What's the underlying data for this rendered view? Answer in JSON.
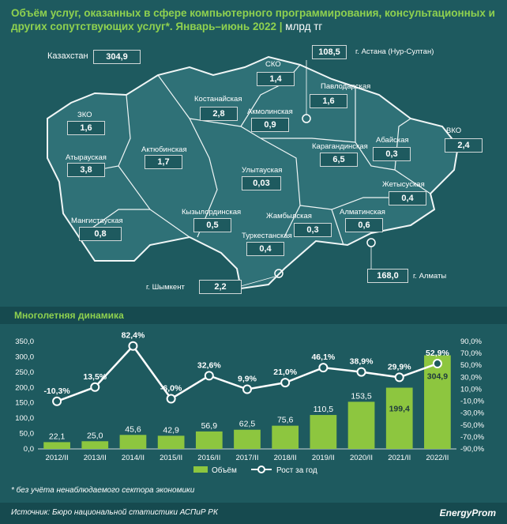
{
  "header": {
    "title": "Объём услуг, оказанных в сфере компьютерного программирования, консультационных и других сопутствующих услуг*. Январь–июнь 2022",
    "unit": "млрд тг"
  },
  "map": {
    "total_label": "Казахстан",
    "total_value": "304,9",
    "regions": [
      {
        "key": "ast",
        "name": "г. Астана (Нур-Султан)",
        "value": "108,5"
      },
      {
        "key": "sko",
        "name": "СКО",
        "value": "1,4"
      },
      {
        "key": "pav",
        "name": "Павлодарская",
        "value": "1,6"
      },
      {
        "key": "kos",
        "name": "Костанайская",
        "value": "2,8"
      },
      {
        "key": "akm",
        "name": "Акмолинская",
        "value": "0,9"
      },
      {
        "key": "zko",
        "name": "ЗКО",
        "value": "1,6"
      },
      {
        "key": "aba",
        "name": "Абайская",
        "value": "0,3"
      },
      {
        "key": "vko",
        "name": "ВКО",
        "value": "2,4"
      },
      {
        "key": "atr",
        "name": "Атырауская",
        "value": "3,8"
      },
      {
        "key": "akt",
        "name": "Актюбинская",
        "value": "1,7"
      },
      {
        "key": "kar",
        "name": "Карагандинская",
        "value": "6,5"
      },
      {
        "key": "uly",
        "name": "Улытауская",
        "value": "0,03"
      },
      {
        "key": "zhe",
        "name": "Жетысуская",
        "value": "0,4"
      },
      {
        "key": "man",
        "name": "Мангистауская",
        "value": "0,8"
      },
      {
        "key": "kyz",
        "name": "Кызылординская",
        "value": "0,5"
      },
      {
        "key": "zha",
        "name": "Жамбылская",
        "value": "0,3"
      },
      {
        "key": "alm",
        "name": "Алматинская",
        "value": "0,6"
      },
      {
        "key": "tur",
        "name": "Туркестанская",
        "value": "0,4"
      },
      {
        "key": "almc",
        "name": "г. Алматы",
        "value": "168,0"
      },
      {
        "key": "shy",
        "name": "г. Шымкент",
        "value": "2,2"
      }
    ]
  },
  "section_title": "Многолетняя динамика",
  "chart_data": {
    "type": "bar",
    "categories": [
      "2012/II",
      "2013/II",
      "2014/II",
      "2015/II",
      "2016/II",
      "2017/II",
      "2018/II",
      "2019/II",
      "2020/II",
      "2021/II",
      "2022/II"
    ],
    "series": [
      {
        "name": "Объём",
        "type": "bar",
        "axis": "left",
        "values": [
          22.1,
          25.0,
          45.6,
          42.9,
          56.9,
          62.5,
          75.6,
          110.5,
          153.5,
          199.4,
          304.9
        ],
        "labels": [
          "22,1",
          "25,0",
          "45,6",
          "42,9",
          "56,9",
          "62,5",
          "75,6",
          "110,5",
          "153,5",
          "199,4",
          "304,9"
        ]
      },
      {
        "name": "Рост за год",
        "type": "line",
        "axis": "right",
        "values": [
          -10.3,
          13.5,
          82.4,
          -6.0,
          32.6,
          9.9,
          21.0,
          46.1,
          38.9,
          29.9,
          52.9
        ],
        "labels": [
          "-10,3%",
          "13,5%",
          "82,4%",
          "-6,0%",
          "32,6%",
          "9,9%",
          "21,0%",
          "46,1%",
          "38,9%",
          "29,9%",
          "52,9%"
        ]
      }
    ],
    "y_left": {
      "range": [
        0,
        350
      ],
      "ticks": [
        "0,0",
        "50,0",
        "100,0",
        "150,0",
        "200,0",
        "250,0",
        "300,0",
        "350,0"
      ]
    },
    "y_right": {
      "range": [
        -90,
        90
      ],
      "ticks": [
        "-90,0%",
        "-70,0%",
        "-50,0%",
        "-30,0%",
        "-10,0%",
        "10,0%",
        "30,0%",
        "50,0%",
        "70,0%",
        "90,0%"
      ]
    },
    "legend_position": "bottom",
    "colors": {
      "bar": "#8dc63f",
      "line": "#ffffff"
    }
  },
  "footnote": "* без учёта ненаблюдаемого сектора экономики",
  "source": "Источник: Бюро национальной статистики АСПиР РК",
  "brand": "EnergyProm"
}
